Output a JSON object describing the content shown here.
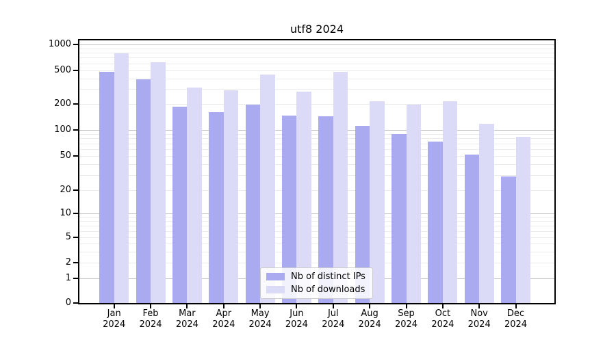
{
  "title": "utf8 2024",
  "chart_data": {
    "type": "bar",
    "title": "utf8 2024",
    "categories": [
      "Jan",
      "Feb",
      "Mar",
      "Apr",
      "May",
      "Jun",
      "Jul",
      "Aug",
      "Sep",
      "Oct",
      "Nov",
      "Dec"
    ],
    "year_label": "2024",
    "series": [
      {
        "name": "Nb of distinct IPs",
        "color": "#aaaaf0",
        "values": [
          475,
          390,
          185,
          160,
          195,
          146,
          143,
          112,
          89,
          74,
          52,
          29
        ]
      },
      {
        "name": "Nb of downloads",
        "color": "#dbdbf8",
        "values": [
          790,
          620,
          310,
          290,
          440,
          277,
          477,
          214,
          196,
          215,
          118,
          84
        ]
      }
    ],
    "yscale": "symlog",
    "yticks": [
      0,
      1,
      2,
      5,
      10,
      20,
      50,
      100,
      200,
      500,
      1000
    ],
    "ylim": [
      0,
      1000
    ],
    "xlabel": "",
    "ylabel": "",
    "grid": true,
    "legend_position": "lower-center"
  }
}
